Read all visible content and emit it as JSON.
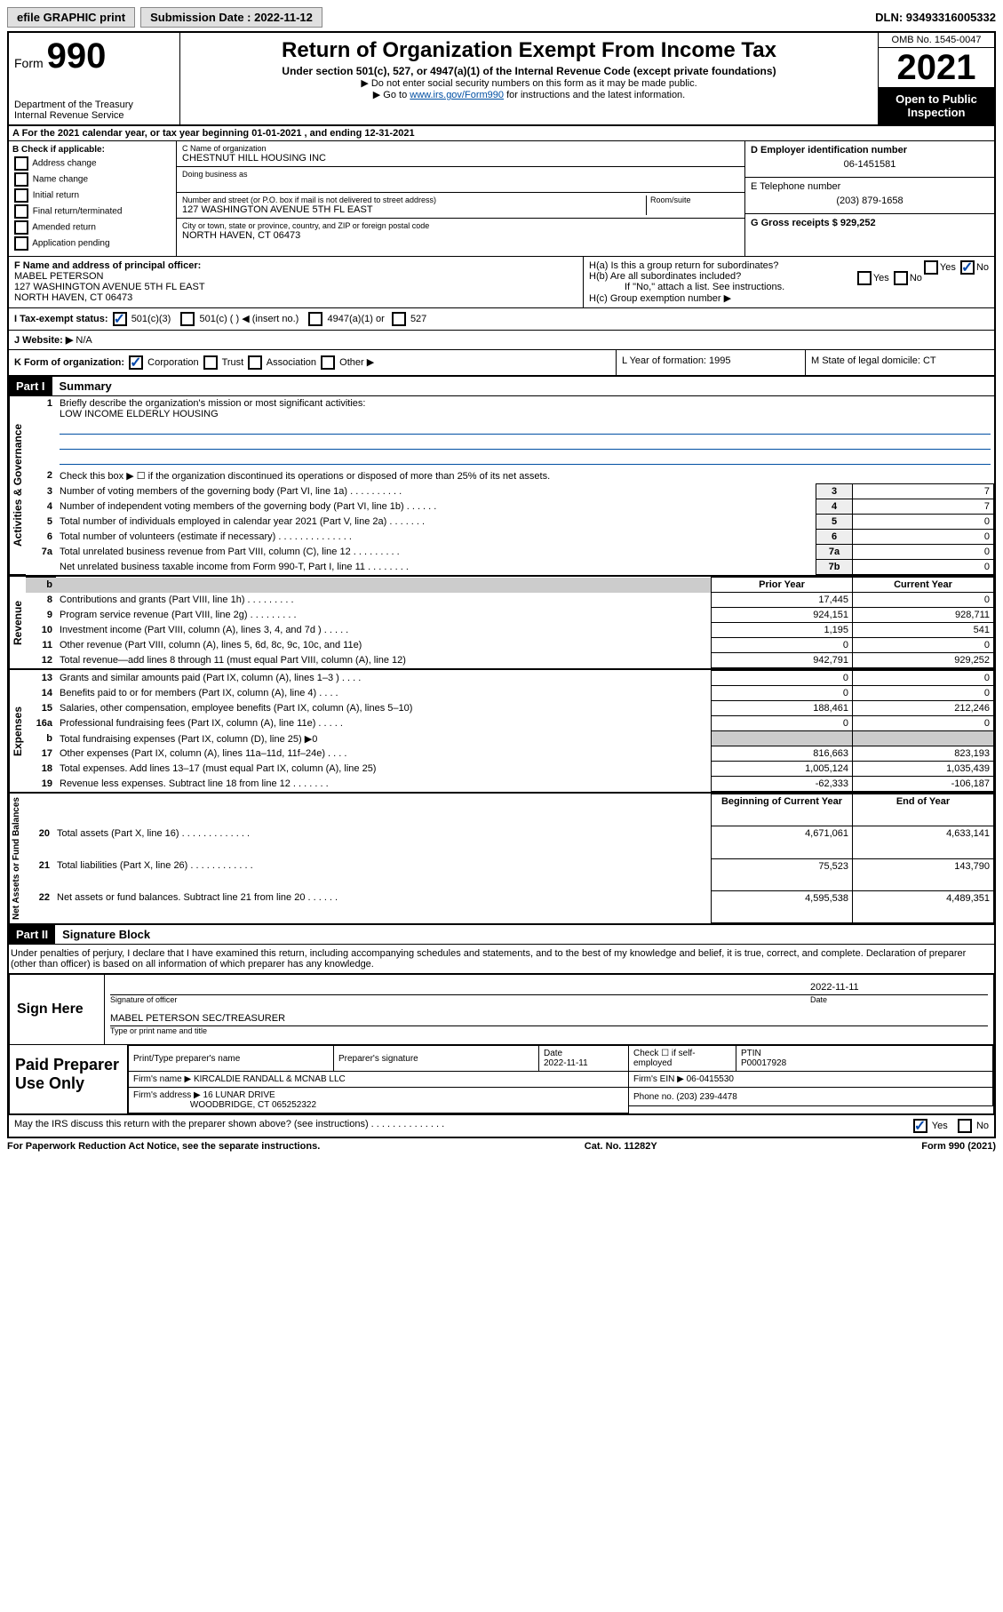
{
  "topbar": {
    "efile_label": "efile GRAPHIC print",
    "submission_label": "Submission Date : 2022-11-12",
    "dln_label": "DLN: 93493316005332"
  },
  "header": {
    "form_prefix": "Form",
    "form_number": "990",
    "dept": "Department of the Treasury",
    "irs": "Internal Revenue Service",
    "title": "Return of Organization Exempt From Income Tax",
    "sub": "Under section 501(c), 527, or 4947(a)(1) of the Internal Revenue Code (except private foundations)",
    "note1": "▶ Do not enter social security numbers on this form as it may be made public.",
    "note2_pre": "▶ Go to ",
    "note2_link": "www.irs.gov/Form990",
    "note2_post": " for instructions and the latest information.",
    "omb": "OMB No. 1545-0047",
    "year": "2021",
    "open": "Open to Public Inspection"
  },
  "section_a": "A For the 2021 calendar year, or tax year beginning 01-01-2021   , and ending 12-31-2021",
  "col_b": {
    "heading": "B Check if applicable:",
    "items": [
      "Address change",
      "Name change",
      "Initial return",
      "Final return/terminated",
      "Amended return",
      "Application pending"
    ]
  },
  "col_c": {
    "name_label": "C Name of organization",
    "name": "CHESTNUT HILL HOUSING INC",
    "dba_label": "Doing business as",
    "addr_label": "Number and street (or P.O. box if mail is not delivered to street address)",
    "addr": "127 WASHINGTON AVENUE 5TH FL EAST",
    "room_label": "Room/suite",
    "city_label": "City or town, state or province, country, and ZIP or foreign postal code",
    "city": "NORTH HAVEN, CT  06473"
  },
  "col_d": {
    "ein_label": "D Employer identification number",
    "ein": "06-1451581",
    "phone_label": "E Telephone number",
    "phone": "(203) 879-1658",
    "gross_label": "G Gross receipts $ 929,252"
  },
  "block_f": {
    "label": "F Name and address of principal officer:",
    "name": "MABEL PETERSON",
    "addr1": "127 WASHINGTON AVENUE 5TH FL EAST",
    "addr2": "NORTH HAVEN, CT  06473"
  },
  "block_h": {
    "ha": "H(a)  Is this a group return for subordinates?",
    "yes": "Yes",
    "no": "No",
    "hb": "H(b)  Are all subordinates included?",
    "hb_note": "If \"No,\" attach a list. See instructions.",
    "hc": "H(c)  Group exemption number ▶"
  },
  "row_i": {
    "label": "I   Tax-exempt status:",
    "opt1": "501(c)(3)",
    "opt2": "501(c) (  ) ◀ (insert no.)",
    "opt3": "4947(a)(1) or",
    "opt4": "527"
  },
  "row_j": {
    "label": "J   Website: ▶",
    "val": "N/A"
  },
  "row_k": {
    "label": "K Form of organization:",
    "opts": [
      "Corporation",
      "Trust",
      "Association",
      "Other ▶"
    ]
  },
  "row_l": "L Year of formation: 1995",
  "row_m": "M State of legal domicile: CT",
  "part1": {
    "header": "Part I",
    "title": "Summary"
  },
  "governance": {
    "label": "Activities & Governance",
    "line1_label": "Briefly describe the organization's mission or most significant activities:",
    "line1_val": "LOW INCOME ELDERLY HOUSING",
    "line2": "Check this box ▶ ☐  if the organization discontinued its operations or disposed of more than 25% of its net assets.",
    "rows": [
      {
        "n": "3",
        "desc": "Number of voting members of the governing body (Part VI, line 1a)  .   .   .   .   .   .   .   .   .   .",
        "box": "3",
        "val": "7"
      },
      {
        "n": "4",
        "desc": "Number of independent voting members of the governing body (Part VI, line 1b)  .   .   .   .   .   .",
        "box": "4",
        "val": "7"
      },
      {
        "n": "5",
        "desc": "Total number of individuals employed in calendar year 2021 (Part V, line 2a)  .   .   .   .   .   .   .",
        "box": "5",
        "val": "0"
      },
      {
        "n": "6",
        "desc": "Total number of volunteers (estimate if necessary)  .   .   .   .   .   .   .   .   .   .   .   .   .   .",
        "box": "6",
        "val": "0"
      },
      {
        "n": "7a",
        "desc": "Total unrelated business revenue from Part VIII, column (C), line 12  .   .   .   .   .   .   .   .   .",
        "box": "7a",
        "val": "0"
      },
      {
        "n": "",
        "desc": "Net unrelated business taxable income from Form 990-T, Part I, line 11  .   .   .   .   .   .   .   .",
        "box": "7b",
        "val": "0"
      }
    ]
  },
  "twocol_header": {
    "prior": "Prior Year",
    "current": "Current Year"
  },
  "revenue": {
    "label": "Revenue",
    "rows": [
      {
        "n": "8",
        "desc": "Contributions and grants (Part VIII, line 1h)  .   .   .   .   .   .   .   .   .",
        "prior": "17,445",
        "curr": "0"
      },
      {
        "n": "9",
        "desc": "Program service revenue (Part VIII, line 2g)  .   .   .   .   .   .   .   .   .",
        "prior": "924,151",
        "curr": "928,711"
      },
      {
        "n": "10",
        "desc": "Investment income (Part VIII, column (A), lines 3, 4, and 7d )  .   .   .   .   .",
        "prior": "1,195",
        "curr": "541"
      },
      {
        "n": "11",
        "desc": "Other revenue (Part VIII, column (A), lines 5, 6d, 8c, 9c, 10c, and 11e)",
        "prior": "0",
        "curr": "0"
      },
      {
        "n": "12",
        "desc": "Total revenue—add lines 8 through 11 (must equal Part VIII, column (A), line 12)",
        "prior": "942,791",
        "curr": "929,252"
      }
    ]
  },
  "expenses": {
    "label": "Expenses",
    "rows": [
      {
        "n": "13",
        "desc": "Grants and similar amounts paid (Part IX, column (A), lines 1–3 )  .   .   .   .",
        "prior": "0",
        "curr": "0"
      },
      {
        "n": "14",
        "desc": "Benefits paid to or for members (Part IX, column (A), line 4)  .   .   .   .",
        "prior": "0",
        "curr": "0"
      },
      {
        "n": "15",
        "desc": "Salaries, other compensation, employee benefits (Part IX, column (A), lines 5–10)",
        "prior": "188,461",
        "curr": "212,246"
      },
      {
        "n": "16a",
        "desc": "Professional fundraising fees (Part IX, column (A), line 11e)  .   .   .   .   .",
        "prior": "0",
        "curr": "0"
      },
      {
        "n": "b",
        "desc": "Total fundraising expenses (Part IX, column (D), line 25) ▶0",
        "prior": "",
        "curr": "",
        "shaded": true
      },
      {
        "n": "17",
        "desc": "Other expenses (Part IX, column (A), lines 11a–11d, 11f–24e)  .   .   .   .",
        "prior": "816,663",
        "curr": "823,193"
      },
      {
        "n": "18",
        "desc": "Total expenses. Add lines 13–17 (must equal Part IX, column (A), line 25)",
        "prior": "1,005,124",
        "curr": "1,035,439"
      },
      {
        "n": "19",
        "desc": "Revenue less expenses. Subtract line 18 from line 12  .   .   .   .   .   .   .",
        "prior": "-62,333",
        "curr": "-106,187"
      }
    ]
  },
  "netassets_header": {
    "begin": "Beginning of Current Year",
    "end": "End of Year"
  },
  "netassets": {
    "label": "Net Assets or Fund Balances",
    "rows": [
      {
        "n": "20",
        "desc": "Total assets (Part X, line 16)  .   .   .   .   .   .   .   .   .   .   .   .   .",
        "prior": "4,671,061",
        "curr": "4,633,141"
      },
      {
        "n": "21",
        "desc": "Total liabilities (Part X, line 26)  .   .   .   .   .   .   .   .   .   .   .   .",
        "prior": "75,523",
        "curr": "143,790"
      },
      {
        "n": "22",
        "desc": "Net assets or fund balances. Subtract line 21 from line 20  .   .   .   .   .   .",
        "prior": "4,595,538",
        "curr": "4,489,351"
      }
    ]
  },
  "part2": {
    "header": "Part II",
    "title": "Signature Block"
  },
  "perjury": "Under penalties of perjury, I declare that I have examined this return, including accompanying schedules and statements, and to the best of my knowledge and belief, it is true, correct, and complete. Declaration of preparer (other than officer) is based on all information of which preparer has any knowledge.",
  "sign": {
    "left": "Sign Here",
    "sig_label": "Signature of officer",
    "date_label": "Date",
    "date": "2022-11-11",
    "name": "MABEL PETERSON  SEC/TREASURER",
    "name_label": "Type or print name and title"
  },
  "paid": {
    "left": "Paid Preparer Use Only",
    "col1": "Print/Type preparer's name",
    "col2": "Preparer's signature",
    "col3_label": "Date",
    "col3": "2022-11-11",
    "col4_label": "Check ☐ if self-employed",
    "col5_label": "PTIN",
    "col5": "P00017928",
    "firm_name_label": "Firm's name    ▶",
    "firm_name": "KIRCALDIE RANDALL & MCNAB LLC",
    "firm_ein_label": "Firm's EIN ▶",
    "firm_ein": "06-0415530",
    "firm_addr_label": "Firm's address ▶",
    "firm_addr1": "16 LUNAR DRIVE",
    "firm_addr2": "WOODBRIDGE, CT  065252322",
    "firm_phone_label": "Phone no.",
    "firm_phone": "(203) 239-4478"
  },
  "discuss": {
    "q": "May the IRS discuss this return with the preparer shown above? (see instructions)  .   .   .   .   .   .   .   .   .   .   .   .   .   .",
    "yes": "Yes",
    "no": "No"
  },
  "footer": {
    "left": "For Paperwork Reduction Act Notice, see the separate instructions.",
    "mid": "Cat. No. 11282Y",
    "right": "Form 990 (2021)"
  }
}
